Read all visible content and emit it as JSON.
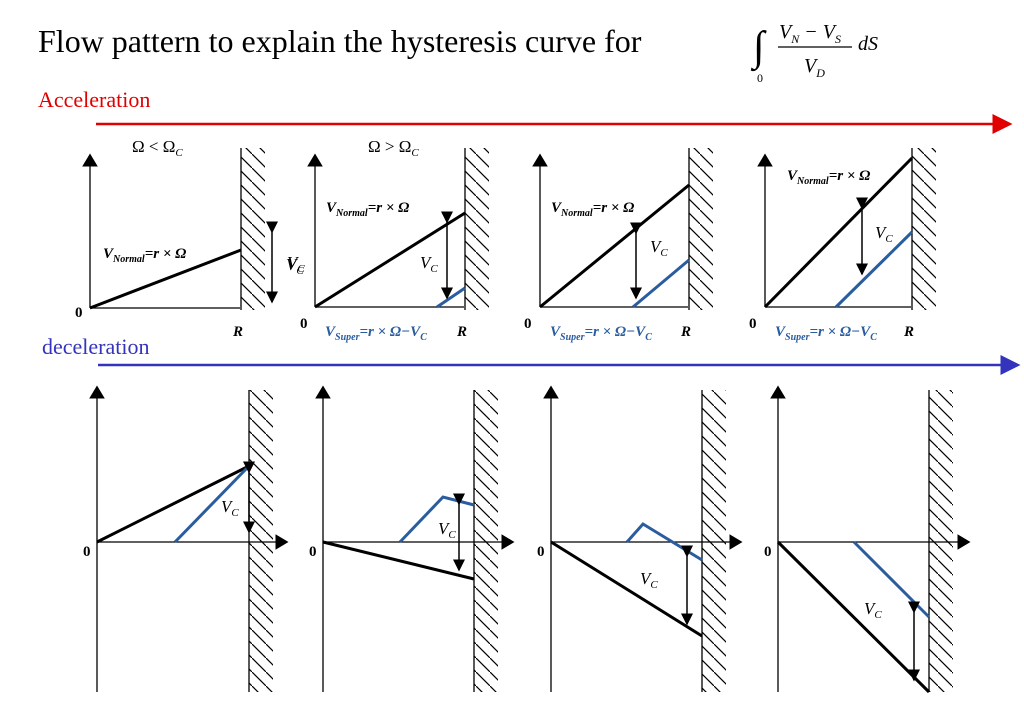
{
  "title": {
    "text": "Flow pattern to explain the hysteresis curve for",
    "integral_lower_limit": "0",
    "fraction_numerator": "V",
    "numerator_sub_n": "N",
    "numerator_minus": " − V",
    "numerator_sub_s": "S",
    "fraction_denominator": "V",
    "denominator_sub": "D",
    "differential": "dS"
  },
  "acceleration": {
    "label": "Acceleration",
    "color": "#e00000",
    "omega_less": "Ω < Ω",
    "omega_greater": "Ω > Ω",
    "omega_sub": "C"
  },
  "deceleration": {
    "label": "deceleration",
    "color": "#3333bb"
  },
  "labels": {
    "origin": "0",
    "radius": "R",
    "v_normal_main": "V",
    "v_normal_sub": "Normal",
    "v_normal_rest": "=r × Ω",
    "v_super_main": "V",
    "v_super_sub": "Super",
    "v_super_rest": "=r × Ω−V",
    "v_super_end_sub": "C",
    "vc_main": "V",
    "vc_sub": "C"
  },
  "colors": {
    "normal_line": "#000000",
    "super_line": "#2a5d9f",
    "accel_arrow": "#e00000",
    "decel_arrow": "#3333bb"
  }
}
